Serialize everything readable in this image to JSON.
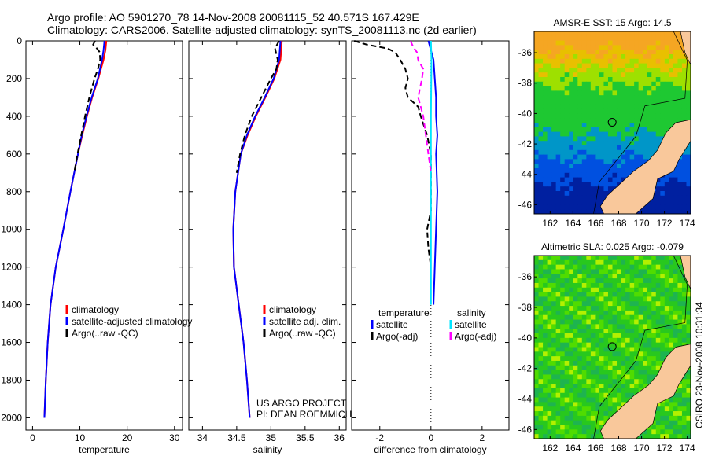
{
  "title_line1": "Argo profile: AO 5901270_78 14-Nov-2008 20081115_52 40.571S 167.429E",
  "title_line2": "Climatology: CARS2006. Satellite-adjusted climatology: synTS_20081113.nc (2d earlier)",
  "footer_stamp": "CSIRO 23-Nov-2008 10:31:34",
  "project_line1": "US ARGO PROJECT",
  "project_line2": "PI: DEAN ROEMMICH",
  "colors": {
    "climatology": "#ff0000",
    "satellite": "#0000ff",
    "argo": "#000000",
    "sal_satellite": "#00e5ff",
    "sal_argo": "#ff00ff",
    "land": "#f9c89b"
  },
  "chart_data": [
    {
      "type": "line",
      "xlabel": "temperature",
      "xlim": [
        -1.4,
        31.7
      ],
      "ylim": [
        0,
        2065
      ],
      "xticks": [
        0,
        10,
        20,
        30
      ],
      "yticks": [
        0,
        200,
        400,
        600,
        800,
        1000,
        1200,
        1400,
        1600,
        1800,
        2000
      ],
      "legend": [
        "climatology",
        "satellite-adjusted climatology",
        "Argo(..raw -QC)"
      ],
      "series": [
        {
          "name": "climatology",
          "color": "#ff0000",
          "depth": [
            0,
            50,
            100,
            200,
            300,
            400,
            500,
            600,
            800,
            1000,
            1200,
            1400,
            1600,
            1800,
            2000
          ],
          "values": [
            15.6,
            15.4,
            15.0,
            13.9,
            12.6,
            11.5,
            10.5,
            9.6,
            8.0,
            6.5,
            4.9,
            3.8,
            3.2,
            2.8,
            2.5
          ],
          "dashed": false
        },
        {
          "name": "satellite-adjusted climatology",
          "color": "#0000ff",
          "depth": [
            0,
            50,
            100,
            200,
            300,
            400,
            500,
            600,
            800,
            1000,
            1200,
            1400,
            1600,
            1800,
            2000
          ],
          "values": [
            15.2,
            15.0,
            14.7,
            13.8,
            12.5,
            11.4,
            10.4,
            9.6,
            8.0,
            6.5,
            4.9,
            3.8,
            3.2,
            2.8,
            2.5
          ],
          "dashed": false
        },
        {
          "name": "Argo(..raw -QC)",
          "color": "#000000",
          "depth": [
            0,
            20,
            40,
            60,
            100,
            150,
            200,
            300,
            400,
            500,
            600,
            700
          ],
          "values": [
            13.2,
            12.8,
            13.6,
            14.2,
            14.3,
            13.8,
            13.1,
            12.0,
            11.1,
            10.3,
            9.5,
            8.8
          ],
          "dashed": true
        }
      ]
    },
    {
      "type": "line",
      "xlabel": "salinity",
      "xlim": [
        33.8,
        36.1
      ],
      "ylim": [
        0,
        2065
      ],
      "xticks": [
        34,
        34.5,
        35,
        35.5,
        36
      ],
      "legend": [
        "climatology",
        "satellite adj. clim.",
        "Argo(..raw -QC)"
      ],
      "series": [
        {
          "name": "climatology",
          "color": "#ff0000",
          "depth": [
            0,
            50,
            100,
            200,
            300,
            400,
            500,
            600,
            800,
            1000,
            1200,
            1400,
            1600,
            1800,
            2000
          ],
          "values": [
            35.16,
            35.15,
            35.14,
            35.05,
            34.92,
            34.78,
            34.66,
            34.56,
            34.48,
            34.45,
            34.46,
            34.53,
            34.6,
            34.65,
            34.69
          ],
          "dashed": false
        },
        {
          "name": "satellite adj. clim.",
          "color": "#0000ff",
          "depth": [
            0,
            50,
            100,
            200,
            300,
            400,
            500,
            600,
            800,
            1000,
            1200,
            1400,
            1600,
            1800,
            2000
          ],
          "values": [
            35.14,
            35.13,
            35.12,
            35.04,
            34.91,
            34.77,
            34.65,
            34.56,
            34.48,
            34.45,
            34.46,
            34.53,
            34.6,
            34.65,
            34.69
          ],
          "dashed": false
        },
        {
          "name": "Argo(..raw -QC)",
          "color": "#000000",
          "depth": [
            0,
            20,
            40,
            100,
            150,
            200,
            300,
            400,
            500,
            600,
            700
          ],
          "values": [
            35.12,
            35.09,
            35.06,
            35.1,
            35.08,
            35.0,
            34.86,
            34.72,
            34.62,
            34.55,
            34.5
          ],
          "dashed": true
        }
      ]
    },
    {
      "type": "line",
      "xlabel": "difference from climatology",
      "xlim": [
        -3.1,
        3.05
      ],
      "ylim": [
        0,
        2065
      ],
      "xticks": [
        -2,
        0,
        2
      ],
      "legend_headers": [
        "temperature",
        "salinity"
      ],
      "legend": [
        "satellite",
        "Argo(-adj)",
        "satellite",
        "Argo(-adj)"
      ],
      "series": [
        {
          "name": "temperature satellite",
          "color": "#0000ff",
          "depth": [
            0,
            50,
            100,
            200,
            300,
            400,
            500,
            600,
            800,
            1000,
            1200,
            1400
          ],
          "values": [
            -0.1,
            0.0,
            0.1,
            0.15,
            0.2,
            0.2,
            0.25,
            0.2,
            0.25,
            0.2,
            0.15,
            0.1
          ],
          "dashed": false
        },
        {
          "name": "temperature Argo(-adj)",
          "color": "#000000",
          "depth": [
            0,
            20,
            40,
            60,
            100,
            150,
            200,
            250,
            300,
            350,
            400,
            500,
            600,
            800,
            900,
            1000,
            1100,
            1200
          ],
          "values": [
            -3.0,
            -2.5,
            -1.7,
            -1.4,
            -1.2,
            -1.0,
            -0.9,
            -1.0,
            -0.9,
            -0.5,
            -0.4,
            -0.15,
            0.0,
            0.0,
            0.0,
            -0.15,
            -0.1,
            0.0
          ],
          "dashed": true
        },
        {
          "name": "salinity satellite",
          "color": "#00e5ff",
          "depth": [
            0,
            100,
            400,
            800,
            1200,
            1400
          ],
          "values": [
            0.0,
            0.02,
            0.0,
            0.0,
            0.0,
            0.0
          ],
          "dashed": false
        },
        {
          "name": "salinity Argo(-adj)",
          "color": "#ff00ff",
          "depth": [
            0,
            30,
            60,
            100,
            150,
            200,
            300,
            400,
            500,
            600,
            700
          ],
          "values": [
            -0.8,
            -0.7,
            -0.55,
            -0.5,
            -0.3,
            -0.35,
            -0.5,
            -0.3,
            -0.2,
            -0.1,
            0.0
          ],
          "dashed": true
        }
      ]
    },
    {
      "type": "heatmap",
      "title": "AMSR-E SST: 15 Argo: 14.5",
      "xticks": [
        162,
        164,
        166,
        168,
        170,
        172,
        174
      ],
      "yticks": [
        -36,
        -38,
        -40,
        -42,
        -44,
        -46
      ],
      "marker": [
        167.429,
        -40.571
      ]
    },
    {
      "type": "heatmap",
      "title": "Altimetric SLA: 0.025 Argo: -0.079",
      "xticks": [
        162,
        164,
        166,
        168,
        170,
        172,
        174
      ],
      "yticks": [
        -36,
        -38,
        -40,
        -42,
        -44,
        -46
      ],
      "marker": [
        167.429,
        -40.571
      ]
    }
  ]
}
